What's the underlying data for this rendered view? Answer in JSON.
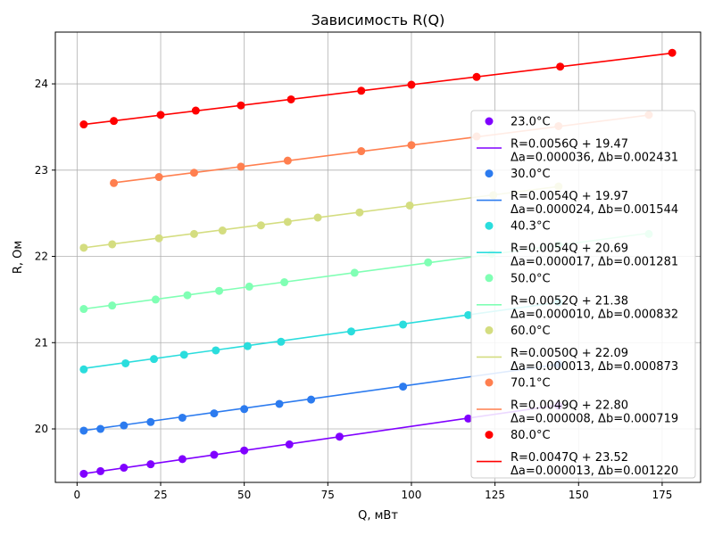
{
  "chart_data": {
    "type": "scatter",
    "title": "Зависимость R(Q)",
    "xlabel": "Q, мВт",
    "ylabel": "R, Ом",
    "xlim": [
      -6.5,
      186.5
    ],
    "ylim": [
      19.38,
      24.6
    ],
    "xticks": [
      0,
      25,
      50,
      75,
      100,
      125,
      150,
      175
    ],
    "yticks": [
      20,
      21,
      22,
      23,
      24
    ],
    "grid": true,
    "legend_position": "right",
    "series": [
      {
        "name": "23.0°C",
        "color": "#8000ff",
        "fit_label": "R=0.0056Q + 19.47",
        "err_label": "Δa=0.000036, Δb=0.002431",
        "slope": 0.0056,
        "intercept": 19.47,
        "fit_x": [
          2,
          144
        ],
        "x": [
          2,
          7,
          14,
          22,
          31.5,
          41,
          50,
          63.5,
          78.5,
          117,
          144
        ],
        "y": [
          19.48,
          19.51,
          19.55,
          19.59,
          19.65,
          19.7,
          19.75,
          19.82,
          19.91,
          20.12,
          20.27
        ]
      },
      {
        "name": "30.0°C",
        "color": "#2c7bef",
        "fit_label": "R=0.0054Q + 19.97",
        "err_label": "Δa=0.000024, Δb=0.001544",
        "slope": 0.0054,
        "intercept": 19.97,
        "fit_x": [
          2,
          144
        ],
        "x": [
          2,
          7,
          14,
          22,
          31.5,
          41,
          50,
          60.5,
          70,
          97.5,
          144
        ],
        "y": [
          19.98,
          20.0,
          20.04,
          20.08,
          20.13,
          20.18,
          20.23,
          20.29,
          20.34,
          20.49,
          20.75
        ]
      },
      {
        "name": "40.3°C",
        "color": "#2adddd",
        "fit_label": "R=0.0054Q + 20.69",
        "err_label": "Δa=0.000017, Δb=0.001281",
        "slope": 0.0054,
        "intercept": 20.69,
        "fit_x": [
          2,
          144
        ],
        "x": [
          2,
          14.5,
          23,
          32,
          41.5,
          51,
          61,
          82,
          97.5,
          117,
          144
        ],
        "y": [
          20.69,
          20.76,
          20.81,
          20.86,
          20.91,
          20.96,
          21.01,
          21.13,
          21.21,
          21.32,
          21.47
        ]
      },
      {
        "name": "50.0°C",
        "color": "#80ffb4",
        "fit_label": "R=0.0052Q + 21.38",
        "err_label": "Δa=0.000010, Δb=0.000832",
        "slope": 0.0052,
        "intercept": 21.38,
        "fit_x": [
          2,
          171
        ],
        "x": [
          2,
          10.5,
          23.5,
          33,
          42.5,
          51.5,
          62,
          83,
          105,
          124,
          144,
          171
        ],
        "y": [
          21.39,
          21.43,
          21.5,
          21.55,
          21.6,
          21.65,
          21.7,
          21.81,
          21.93,
          22.03,
          22.13,
          22.26
        ]
      },
      {
        "name": "60.0°C",
        "color": "#d4dd80",
        "fit_label": "R=0.0050Q + 22.09",
        "err_label": "Δa=0.000013, Δb=0.000873",
        "slope": 0.005,
        "intercept": 22.09,
        "fit_x": [
          2,
          144
        ],
        "x": [
          2,
          10.5,
          24.5,
          35,
          43.5,
          55,
          63,
          72,
          84.5,
          99.5,
          124.5,
          144
        ],
        "y": [
          22.1,
          22.14,
          22.21,
          22.26,
          22.3,
          22.36,
          22.4,
          22.45,
          22.51,
          22.59,
          22.71,
          22.81
        ]
      },
      {
        "name": "70.1°C",
        "color": "#ff7f4f",
        "fit_label": "R=0.0049Q + 22.80",
        "err_label": "Δa=0.000008, Δb=0.000719",
        "slope": 0.0049,
        "intercept": 22.8,
        "fit_x": [
          11,
          171
        ],
        "x": [
          11,
          24.5,
          35,
          49,
          63,
          85,
          100,
          119.5,
          144,
          171
        ],
        "y": [
          22.85,
          22.92,
          22.97,
          23.04,
          23.11,
          23.22,
          23.29,
          23.39,
          23.51,
          23.64
        ]
      },
      {
        "name": "80.0°C",
        "color": "#ff0000",
        "fit_label": "R=0.0047Q + 23.52",
        "err_label": "Δa=0.000013, Δb=0.001220",
        "slope": 0.0047,
        "intercept": 23.52,
        "fit_x": [
          2,
          178
        ],
        "x": [
          2,
          11,
          25,
          35.5,
          49,
          64,
          85,
          100,
          119.5,
          144.5,
          178
        ],
        "y": [
          23.53,
          23.57,
          23.64,
          23.69,
          23.75,
          23.82,
          23.92,
          23.99,
          24.08,
          24.2,
          24.36
        ]
      }
    ]
  }
}
